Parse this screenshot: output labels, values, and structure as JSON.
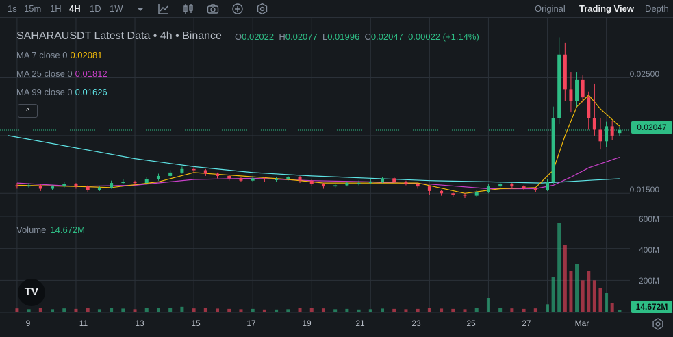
{
  "toolbar": {
    "timeframes": [
      "1s",
      "15m",
      "1H",
      "4H",
      "1D",
      "1W"
    ],
    "active_timeframe": "4H",
    "icons": [
      "chevron-down-icon",
      "indicator-icon",
      "candle-type-icon",
      "camera-icon",
      "plus-circle-icon",
      "settings-circle-icon"
    ],
    "views": [
      "Original",
      "Trading View",
      "Depth"
    ],
    "active_view": "Trading View"
  },
  "legend": {
    "title": "SAHARAUSDT Latest Data • 4h • Binance",
    "open_label": "O",
    "open": "0.02022",
    "high_label": "H",
    "high": "0.02077",
    "low_label": "L",
    "low": "0.01996",
    "close_label": "C",
    "close": "0.02047",
    "change": "0.00022 (+1.14%)",
    "ma7_label": "MA 7 close 0",
    "ma7_value": "0.02081",
    "ma7_color": "#f0b90b",
    "ma25_label": "MA 25 close 0",
    "ma25_value": "0.01812",
    "ma25_color": "#c940c9",
    "ma99_label": "MA 99 close 0",
    "ma99_value": "0.01626",
    "ma99_color": "#5ee4e6",
    "collapse_symbol": "^"
  },
  "volume": {
    "label": "Volume",
    "value": "14.672M"
  },
  "price_axis": {
    "ticks": [
      "0.02500",
      "0.01500"
    ],
    "current_price": "0.02047"
  },
  "volume_axis": {
    "ticks": [
      "600M",
      "400M",
      "200M"
    ],
    "current_volume": "14.672M"
  },
  "time_axis": {
    "ticks": [
      "9",
      "11",
      "13",
      "15",
      "17",
      "19",
      "21",
      "23",
      "25",
      "27",
      "Mar"
    ]
  },
  "logo": "TV",
  "colors": {
    "up": "#2ebd85",
    "down": "#f6465d",
    "background": "#161a1e",
    "grid": "#2b3139"
  },
  "chart_data": {
    "type": "candlestick",
    "interval": "4h",
    "price_range": [
      0.013,
      0.029
    ],
    "volume_range_millions": [
      0,
      600
    ],
    "x_range_days": [
      8.7,
      29.8
    ],
    "candles": [
      {
        "d": 9.0,
        "o": 0.0157,
        "c": 0.0156,
        "h": 0.0159,
        "l": 0.0154,
        "v": 25
      },
      {
        "d": 9.4,
        "o": 0.0156,
        "c": 0.0157,
        "h": 0.0159,
        "l": 0.0155,
        "v": 20
      },
      {
        "d": 9.8,
        "o": 0.0157,
        "c": 0.0154,
        "h": 0.0158,
        "l": 0.0152,
        "v": 30
      },
      {
        "d": 10.2,
        "o": 0.0154,
        "c": 0.0156,
        "h": 0.0157,
        "l": 0.0153,
        "v": 20
      },
      {
        "d": 10.6,
        "o": 0.0156,
        "c": 0.0158,
        "h": 0.016,
        "l": 0.0155,
        "v": 25
      },
      {
        "d": 11.0,
        "o": 0.0158,
        "c": 0.0156,
        "h": 0.0159,
        "l": 0.0154,
        "v": 22
      },
      {
        "d": 11.4,
        "o": 0.0156,
        "c": 0.0153,
        "h": 0.0157,
        "l": 0.0151,
        "v": 28
      },
      {
        "d": 11.8,
        "o": 0.0153,
        "c": 0.0155,
        "h": 0.0156,
        "l": 0.0152,
        "v": 20
      },
      {
        "d": 12.2,
        "o": 0.0155,
        "c": 0.0159,
        "h": 0.0161,
        "l": 0.0154,
        "v": 30
      },
      {
        "d": 12.6,
        "o": 0.0159,
        "c": 0.016,
        "h": 0.0162,
        "l": 0.0158,
        "v": 24
      },
      {
        "d": 13.0,
        "o": 0.016,
        "c": 0.0159,
        "h": 0.0161,
        "l": 0.0157,
        "v": 20
      },
      {
        "d": 13.4,
        "o": 0.0159,
        "c": 0.0162,
        "h": 0.0164,
        "l": 0.0158,
        "v": 26
      },
      {
        "d": 13.8,
        "o": 0.0162,
        "c": 0.0165,
        "h": 0.0167,
        "l": 0.0161,
        "v": 30
      },
      {
        "d": 14.2,
        "o": 0.0165,
        "c": 0.0168,
        "h": 0.017,
        "l": 0.0164,
        "v": 28
      },
      {
        "d": 14.6,
        "o": 0.0168,
        "c": 0.0171,
        "h": 0.0173,
        "l": 0.0167,
        "v": 35
      },
      {
        "d": 15.0,
        "o": 0.0171,
        "c": 0.017,
        "h": 0.0173,
        "l": 0.0168,
        "v": 25
      },
      {
        "d": 15.4,
        "o": 0.017,
        "c": 0.0167,
        "h": 0.0171,
        "l": 0.0165,
        "v": 30
      },
      {
        "d": 15.8,
        "o": 0.0167,
        "c": 0.0165,
        "h": 0.0168,
        "l": 0.0163,
        "v": 24
      },
      {
        "d": 16.2,
        "o": 0.0165,
        "c": 0.0163,
        "h": 0.0166,
        "l": 0.0161,
        "v": 22
      },
      {
        "d": 16.6,
        "o": 0.0163,
        "c": 0.0161,
        "h": 0.0164,
        "l": 0.016,
        "v": 20
      },
      {
        "d": 17.0,
        "o": 0.0161,
        "c": 0.0163,
        "h": 0.0165,
        "l": 0.016,
        "v": 22
      },
      {
        "d": 17.4,
        "o": 0.0163,
        "c": 0.0162,
        "h": 0.0164,
        "l": 0.016,
        "v": 18
      },
      {
        "d": 17.8,
        "o": 0.0162,
        "c": 0.0162,
        "h": 0.0164,
        "l": 0.016,
        "v": 18
      },
      {
        "d": 18.2,
        "o": 0.0162,
        "c": 0.0164,
        "h": 0.0165,
        "l": 0.0161,
        "v": 20
      },
      {
        "d": 18.6,
        "o": 0.0164,
        "c": 0.0161,
        "h": 0.0165,
        "l": 0.0159,
        "v": 26
      },
      {
        "d": 19.0,
        "o": 0.0161,
        "c": 0.0158,
        "h": 0.0162,
        "l": 0.0156,
        "v": 28
      },
      {
        "d": 19.4,
        "o": 0.0158,
        "c": 0.0156,
        "h": 0.0159,
        "l": 0.0154,
        "v": 25
      },
      {
        "d": 19.8,
        "o": 0.0156,
        "c": 0.0157,
        "h": 0.0159,
        "l": 0.0155,
        "v": 20
      },
      {
        "d": 20.2,
        "o": 0.0157,
        "c": 0.0159,
        "h": 0.016,
        "l": 0.0156,
        "v": 22
      },
      {
        "d": 20.6,
        "o": 0.0159,
        "c": 0.0159,
        "h": 0.0161,
        "l": 0.0157,
        "v": 18
      },
      {
        "d": 21.0,
        "o": 0.0159,
        "c": 0.016,
        "h": 0.0162,
        "l": 0.0158,
        "v": 20
      },
      {
        "d": 21.4,
        "o": 0.016,
        "c": 0.0163,
        "h": 0.0164,
        "l": 0.0159,
        "v": 24
      },
      {
        "d": 21.8,
        "o": 0.0163,
        "c": 0.016,
        "h": 0.0164,
        "l": 0.0159,
        "v": 22
      },
      {
        "d": 22.2,
        "o": 0.016,
        "c": 0.0158,
        "h": 0.0161,
        "l": 0.0157,
        "v": 20
      },
      {
        "d": 22.6,
        "o": 0.0158,
        "c": 0.0156,
        "h": 0.0159,
        "l": 0.0154,
        "v": 22
      },
      {
        "d": 23.0,
        "o": 0.0156,
        "c": 0.0152,
        "h": 0.0157,
        "l": 0.0149,
        "v": 30
      },
      {
        "d": 23.4,
        "o": 0.0152,
        "c": 0.015,
        "h": 0.0153,
        "l": 0.0148,
        "v": 24
      },
      {
        "d": 23.8,
        "o": 0.015,
        "c": 0.0149,
        "h": 0.0151,
        "l": 0.0147,
        "v": 22
      },
      {
        "d": 24.2,
        "o": 0.0149,
        "c": 0.0148,
        "h": 0.015,
        "l": 0.0146,
        "v": 20
      },
      {
        "d": 24.6,
        "o": 0.0148,
        "c": 0.0151,
        "h": 0.0153,
        "l": 0.0147,
        "v": 26
      },
      {
        "d": 25.0,
        "o": 0.0151,
        "c": 0.0156,
        "h": 0.0158,
        "l": 0.015,
        "v": 90
      },
      {
        "d": 25.4,
        "o": 0.0156,
        "c": 0.0158,
        "h": 0.016,
        "l": 0.0154,
        "v": 30
      },
      {
        "d": 25.8,
        "o": 0.0158,
        "c": 0.0156,
        "h": 0.0159,
        "l": 0.0154,
        "v": 25
      },
      {
        "d": 26.2,
        "o": 0.0156,
        "c": 0.0154,
        "h": 0.0157,
        "l": 0.0153,
        "v": 22
      },
      {
        "d": 26.6,
        "o": 0.0154,
        "c": 0.0153,
        "h": 0.0155,
        "l": 0.0151,
        "v": 25
      },
      {
        "d": 27.0,
        "o": 0.0153,
        "c": 0.016,
        "h": 0.0162,
        "l": 0.0152,
        "v": 50
      },
      {
        "d": 27.2,
        "o": 0.016,
        "c": 0.0215,
        "h": 0.0225,
        "l": 0.0158,
        "v": 220
      },
      {
        "d": 27.4,
        "o": 0.0215,
        "c": 0.027,
        "h": 0.0285,
        "l": 0.021,
        "v": 560
      },
      {
        "d": 27.6,
        "o": 0.027,
        "c": 0.024,
        "h": 0.028,
        "l": 0.023,
        "v": 420
      },
      {
        "d": 27.8,
        "o": 0.024,
        "c": 0.023,
        "h": 0.0255,
        "l": 0.022,
        "v": 260
      },
      {
        "d": 28.0,
        "o": 0.023,
        "c": 0.0248,
        "h": 0.0255,
        "l": 0.0225,
        "v": 300
      },
      {
        "d": 28.2,
        "o": 0.0248,
        "c": 0.0233,
        "h": 0.0252,
        "l": 0.0228,
        "v": 200
      },
      {
        "d": 28.4,
        "o": 0.0233,
        "c": 0.0215,
        "h": 0.0238,
        "l": 0.0205,
        "v": 260
      },
      {
        "d": 28.6,
        "o": 0.0215,
        "c": 0.0205,
        "h": 0.0245,
        "l": 0.02,
        "v": 200
      },
      {
        "d": 28.8,
        "o": 0.0205,
        "c": 0.0195,
        "h": 0.0215,
        "l": 0.0188,
        "v": 150
      },
      {
        "d": 29.0,
        "o": 0.0195,
        "c": 0.0208,
        "h": 0.0212,
        "l": 0.019,
        "v": 120
      },
      {
        "d": 29.2,
        "o": 0.0208,
        "c": 0.02,
        "h": 0.0213,
        "l": 0.0196,
        "v": 60
      },
      {
        "d": 29.45,
        "o": 0.02022,
        "c": 0.02047,
        "h": 0.02077,
        "l": 0.01996,
        "v": 15
      }
    ],
    "ma7": [
      [
        9.0,
        0.0157
      ],
      [
        11.0,
        0.0156
      ],
      [
        12.2,
        0.0155
      ],
      [
        13.8,
        0.016
      ],
      [
        15.0,
        0.0168
      ],
      [
        16.6,
        0.0165
      ],
      [
        18.2,
        0.0162
      ],
      [
        19.4,
        0.0159
      ],
      [
        21.0,
        0.0159
      ],
      [
        22.6,
        0.0159
      ],
      [
        24.2,
        0.015
      ],
      [
        25.4,
        0.0154
      ],
      [
        26.6,
        0.0155
      ],
      [
        27.2,
        0.017
      ],
      [
        27.6,
        0.02
      ],
      [
        28.0,
        0.0225
      ],
      [
        28.4,
        0.0235
      ],
      [
        28.8,
        0.0223
      ],
      [
        29.45,
        0.02081
      ]
    ],
    "ma25": [
      [
        9.0,
        0.0159
      ],
      [
        11.0,
        0.0156
      ],
      [
        13.0,
        0.0157
      ],
      [
        15.0,
        0.0162
      ],
      [
        17.0,
        0.0163
      ],
      [
        19.0,
        0.0161
      ],
      [
        21.0,
        0.016
      ],
      [
        23.0,
        0.0158
      ],
      [
        25.0,
        0.0154
      ],
      [
        26.6,
        0.0154
      ],
      [
        27.2,
        0.0157
      ],
      [
        27.8,
        0.0164
      ],
      [
        28.4,
        0.0172
      ],
      [
        29.45,
        0.01812
      ]
    ],
    "ma99": [
      [
        8.7,
        0.02
      ],
      [
        10.0,
        0.0194
      ],
      [
        11.5,
        0.0187
      ],
      [
        13.0,
        0.018
      ],
      [
        15.0,
        0.0173
      ],
      [
        17.0,
        0.0168
      ],
      [
        19.0,
        0.0165
      ],
      [
        21.0,
        0.0163
      ],
      [
        23.0,
        0.0161
      ],
      [
        25.0,
        0.016
      ],
      [
        26.8,
        0.0159
      ],
      [
        27.6,
        0.016
      ],
      [
        28.6,
        0.01615
      ],
      [
        29.45,
        0.01626
      ]
    ]
  }
}
